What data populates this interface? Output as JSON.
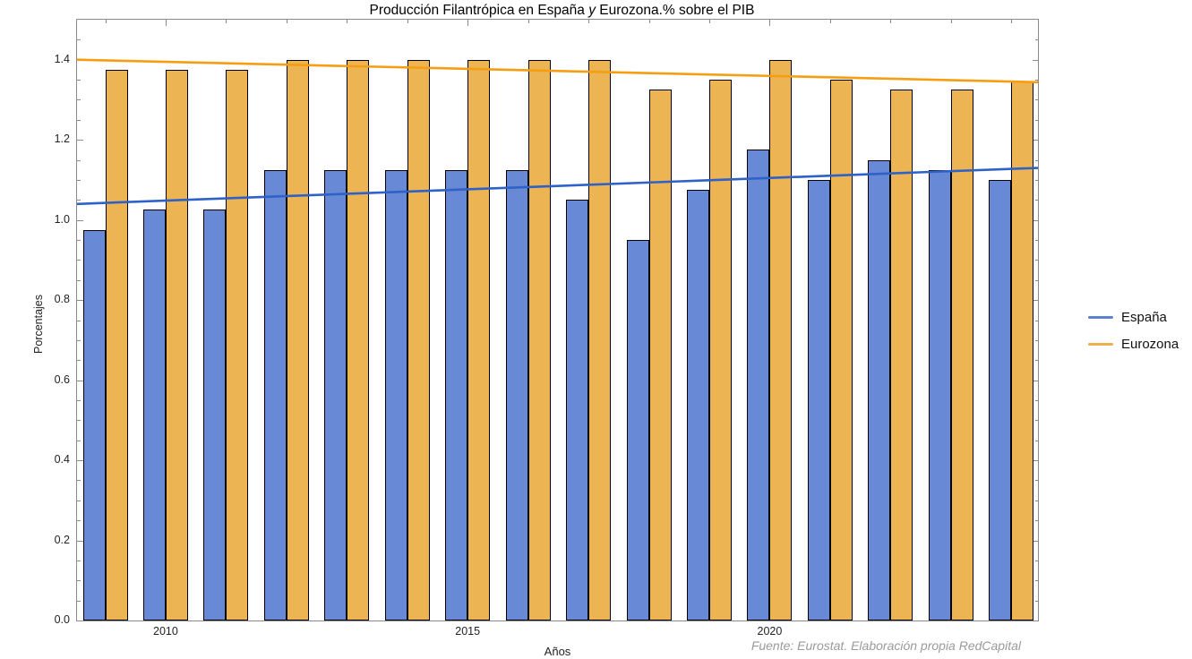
{
  "title": {
    "part1": "Producción Filantrópica en España ",
    "part2_italic": "y",
    "part3": " Eurozona.% sobre el PIB"
  },
  "source_note": "Fuente: Eurostat. Elaboración propia RedCapital",
  "legend": [
    {
      "label": "España",
      "color": "#5b82d3"
    },
    {
      "label": "Eurozona",
      "color": "#edb04e"
    }
  ],
  "colors": {
    "espana_bar": "#6889d6",
    "eurozona_bar": "#ecb452",
    "espana_line": "#2f62c8",
    "eurozona_line": "#f59e11",
    "bar_edge": "#000000",
    "frame": "#8a8a8a",
    "text": "#222222",
    "source_text": "#9a9a9a"
  },
  "chart_data": {
    "type": "bar",
    "title": "Producción Filantrópica en España y Eurozona.% sobre el PIB",
    "xlabel": "Años",
    "ylabel": "Porcentajes",
    "ylim": [
      0,
      1.5
    ],
    "grid": false,
    "legend_position": "right",
    "categories": [
      "2009",
      "2010",
      "2011",
      "2012",
      "2013",
      "2014",
      "2015",
      "2016",
      "2017",
      "2018",
      "2019",
      "2020",
      "2021",
      "2022",
      "2023",
      "2024"
    ],
    "series": [
      {
        "name": "España",
        "values": [
          0.975,
          1.025,
          1.025,
          1.125,
          1.125,
          1.125,
          1.125,
          1.125,
          1.05,
          0.95,
          1.075,
          1.175,
          1.1,
          1.15,
          1.125,
          1.1
        ]
      },
      {
        "name": "Eurozona",
        "values": [
          1.375,
          1.375,
          1.375,
          1.4,
          1.4,
          1.4,
          1.4,
          1.4,
          1.4,
          1.325,
          1.35,
          1.4,
          1.35,
          1.325,
          1.325,
          1.345
        ]
      }
    ],
    "trend_lines": [
      {
        "name": "España",
        "start_value": 1.04,
        "end_value": 1.13,
        "color": "#2f62c8"
      },
      {
        "name": "Eurozona",
        "start_value": 1.4,
        "end_value": 1.344,
        "color": "#f59e11"
      }
    ],
    "y_ticks": [
      {
        "value": 0.0,
        "label": "0.0"
      },
      {
        "value": 0.2,
        "label": "0.2"
      },
      {
        "value": 0.4,
        "label": "0.4"
      },
      {
        "value": 0.6,
        "label": "0.6"
      },
      {
        "value": 0.8,
        "label": "0.8"
      },
      {
        "value": 1.0,
        "label": "1.0"
      },
      {
        "value": 1.2,
        "label": "1.2"
      },
      {
        "value": 1.4,
        "label": "1.4"
      }
    ],
    "y_minor_tick_step": 0.05,
    "x_ticks": [
      {
        "year": "2010"
      },
      {
        "year": "2015"
      },
      {
        "year": "2020"
      }
    ]
  }
}
